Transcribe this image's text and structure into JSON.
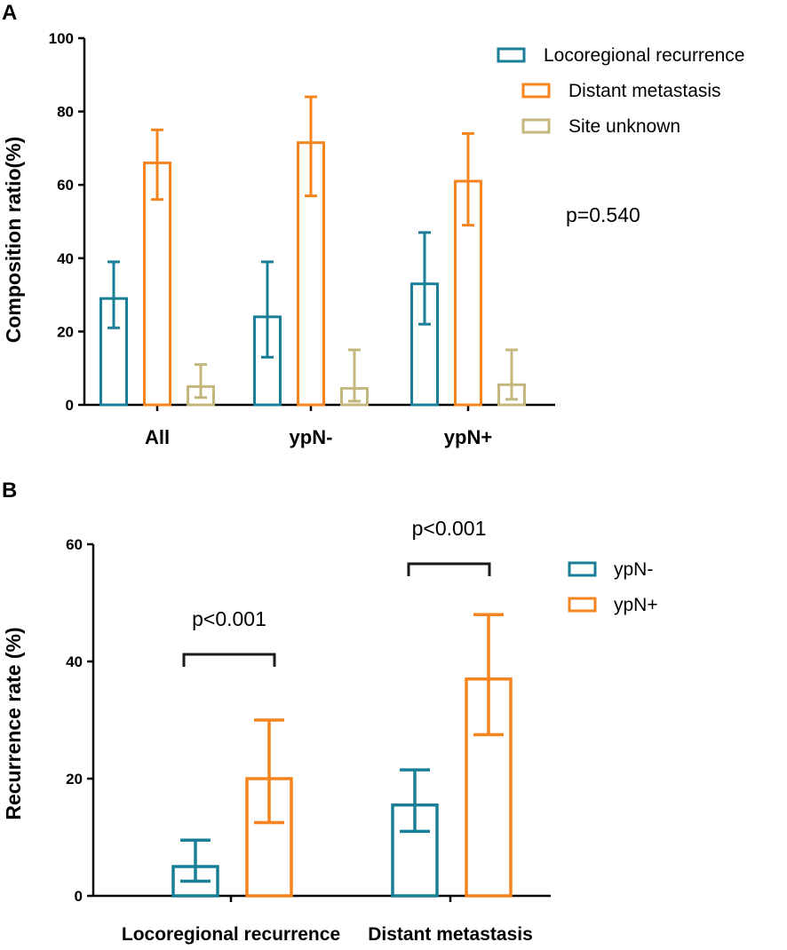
{
  "colors": {
    "locoregional": "#1a7f96",
    "distant": "#f5841f",
    "unknown": "#c4b77e",
    "ypn_minus": "#1a7f96",
    "ypn_plus": "#f5841f"
  },
  "chart_data": [
    {
      "panel": "A",
      "type": "bar",
      "categories": [
        "All",
        "ypN-",
        "ypN+"
      ],
      "ylabel": "Composition ratio(%)",
      "xlabel": "",
      "ylim": [
        0,
        100
      ],
      "yticks": [
        0,
        20,
        40,
        60,
        80,
        100
      ],
      "legend_position": "top-right",
      "series": [
        {
          "name": "Locoregional recurrence",
          "color_key": "locoregional",
          "values": [
            29,
            24,
            33
          ],
          "err_low": [
            21,
            13,
            22
          ],
          "err_high": [
            39,
            39,
            47
          ]
        },
        {
          "name": "Distant metastasis",
          "color_key": "distant",
          "values": [
            66,
            71.5,
            61
          ],
          "err_low": [
            56,
            57,
            49
          ],
          "err_high": [
            75,
            84,
            74
          ]
        },
        {
          "name": "Site unknown",
          "color_key": "unknown",
          "values": [
            5,
            4.5,
            5.5
          ],
          "err_low": [
            2,
            1,
            1.5
          ],
          "err_high": [
            11,
            15,
            15
          ]
        }
      ],
      "annotation": "p=0.540"
    },
    {
      "panel": "B",
      "type": "bar",
      "categories": [
        "Locoregional recurrence",
        "Distant metastasis"
      ],
      "ylabel": "Recurrence rate (%)",
      "xlabel": "",
      "ylim": [
        0,
        60
      ],
      "yticks": [
        0,
        20,
        40,
        60
      ],
      "legend_position": "top-right",
      "series": [
        {
          "name": "ypN-",
          "color_key": "ypn_minus",
          "values": [
            5,
            15.5
          ],
          "err_low": [
            2.5,
            11
          ],
          "err_high": [
            9.5,
            21.5
          ]
        },
        {
          "name": "ypN+",
          "color_key": "ypn_plus",
          "values": [
            20,
            37
          ],
          "err_low": [
            12.5,
            27.5
          ],
          "err_high": [
            30,
            48
          ]
        }
      ],
      "annotations": [
        "p<0.001",
        "p<0.001"
      ]
    }
  ]
}
